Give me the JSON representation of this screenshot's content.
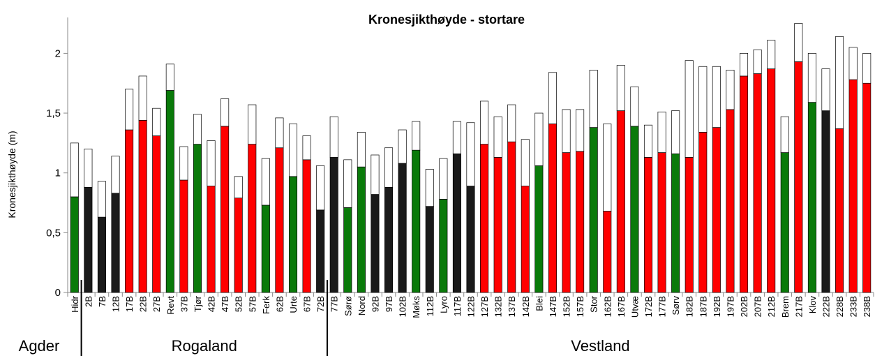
{
  "chart_data": {
    "type": "bar",
    "title": "Kronesjikthøyde - stortare",
    "y_label": "Kronesjikthøyde  (m)",
    "categories": [
      "Hidr",
      "2B",
      "7B",
      "12B",
      "17B",
      "22B",
      "27B",
      "Revt",
      "37B",
      "Tjør",
      "42B",
      "47B",
      "52B",
      "57B",
      "Ferk",
      "62B",
      "Urte",
      "67B",
      "72B",
      "77B",
      "Sørø",
      "Nord",
      "92B",
      "97B",
      "102B",
      "Møks",
      "112B",
      "Lyro",
      "117B",
      "122B",
      "127B",
      "132B",
      "137B",
      "142B",
      "Blei",
      "147B",
      "152B",
      "157B",
      "Stor",
      "162B",
      "167B",
      "Utvæ",
      "172B",
      "177B",
      "Sørv",
      "182B",
      "187B",
      "192B",
      "197B",
      "202B",
      "207B",
      "212B",
      "Brem",
      "217B",
      "Klov",
      "222B",
      "228B",
      "233B",
      "238B"
    ],
    "series": [
      {
        "colors": [
          "#0a7a0a",
          "#1a1a1a",
          "#1a1a1a",
          "#1a1a1a",
          "#ff0000",
          "#ff0000",
          "#ff0000",
          "#0a7a0a",
          "#ff0000",
          "#0a7a0a",
          "#ff0000",
          "#ff0000",
          "#ff0000",
          "#ff0000",
          "#0a7a0a",
          "#ff0000",
          "#0a7a0a",
          "#ff0000",
          "#1a1a1a",
          "#1a1a1a",
          "#0a7a0a",
          "#0a7a0a",
          "#1a1a1a",
          "#1a1a1a",
          "#1a1a1a",
          "#0a7a0a",
          "#1a1a1a",
          "#0a7a0a",
          "#1a1a1a",
          "#1a1a1a",
          "#ff0000",
          "#ff0000",
          "#ff0000",
          "#ff0000",
          "#0a7a0a",
          "#ff0000",
          "#ff0000",
          "#ff0000",
          "#0a7a0a",
          "#ff0000",
          "#ff0000",
          "#0a7a0a",
          "#ff0000",
          "#ff0000",
          "#0a7a0a",
          "#ff0000",
          "#ff0000",
          "#ff0000",
          "#ff0000",
          "#ff0000",
          "#ff0000",
          "#ff0000",
          "#0a7a0a",
          "#ff0000",
          "#0a7a0a",
          "#1a1a1a",
          "#ff0000",
          "#ff0000",
          "#ff0000"
        ],
        "values": [
          0.8,
          0.88,
          0.63,
          0.83,
          1.36,
          1.44,
          1.31,
          1.69,
          0.94,
          1.24,
          0.89,
          1.39,
          0.79,
          1.24,
          0.73,
          1.21,
          0.97,
          1.11,
          0.69,
          1.13,
          0.71,
          1.05,
          0.82,
          0.88,
          1.08,
          1.19,
          0.72,
          0.78,
          1.16,
          0.89,
          1.24,
          1.13,
          1.26,
          0.89,
          1.06,
          1.41,
          1.17,
          1.18,
          1.38,
          0.68,
          1.52,
          1.39,
          1.13,
          1.17,
          1.16,
          1.13,
          1.34,
          1.38,
          1.53,
          1.81,
          1.83,
          1.87,
          1.17,
          1.93,
          1.59,
          1.52,
          1.37,
          1.78,
          1.75
        ]
      },
      {
        "color": "#ffffff",
        "values": [
          0.45,
          0.32,
          0.3,
          0.31,
          0.34,
          0.37,
          0.23,
          0.22,
          0.28,
          0.25,
          0.38,
          0.23,
          0.18,
          0.33,
          0.39,
          0.25,
          0.44,
          0.2,
          0.37,
          0.34,
          0.4,
          0.29,
          0.33,
          0.33,
          0.28,
          0.24,
          0.31,
          0.34,
          0.27,
          0.53,
          0.36,
          0.34,
          0.31,
          0.39,
          0.44,
          0.43,
          0.36,
          0.35,
          0.48,
          0.73,
          0.38,
          0.33,
          0.27,
          0.34,
          0.36,
          0.81,
          0.55,
          0.51,
          0.33,
          0.19,
          0.2,
          0.24,
          0.3,
          0.32,
          0.41,
          0.35,
          0.77,
          0.27,
          0.25
        ]
      }
    ],
    "groups": [
      {
        "name": "Agder",
        "count": 1
      },
      {
        "name": "Rogaland",
        "count": 18
      },
      {
        "name": "Vestland",
        "count": 40
      }
    ],
    "ylim": [
      0,
      2.3
    ],
    "yticks": [
      0,
      {
        "value": 0.5,
        "label": "0,5"
      },
      1,
      {
        "value": 1.5,
        "label": "1,5"
      },
      2
    ],
    "grid": false
  }
}
